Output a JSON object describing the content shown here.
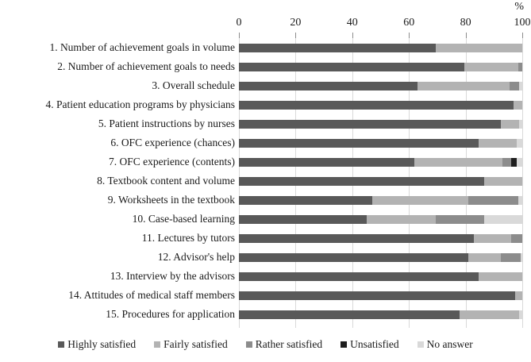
{
  "chart_data": {
    "type": "bar",
    "subtype": "horizontal-stacked-100pct",
    "unit_label": "%",
    "axis": {
      "ticks": [
        0,
        20,
        40,
        60,
        80,
        100
      ],
      "min": 0,
      "max": 100,
      "grid": true,
      "position": "top"
    },
    "categories": [
      "1. Number of achievement goals in volume",
      "2. Number of achievement goals to needs",
      "3. Overall schedule",
      "4. Patient education programs by physicians",
      "5. Patient instructions by nurses",
      "6. OFC experience (chances)",
      "7. OFC experience (contents)",
      "8. Textbook content and volume",
      "9. Worksheets in the textbook",
      "10. Case-based learning",
      "11. Lectures by tutors",
      "12. Advisor's help",
      "13. Interview by the advisors",
      "14. Attitudes of medical staff members",
      "15. Procedures for application"
    ],
    "series": [
      {
        "name": "Highly satisfied",
        "color": "#595959",
        "values": [
          69.5,
          79.5,
          63,
          97,
          92.5,
          84.5,
          62,
          86.5,
          47,
          45,
          83,
          81,
          84.5,
          97.5,
          78
        ]
      },
      {
        "name": "Fairly satisfied",
        "color": "#b3b3b3",
        "values": [
          30.5,
          19,
          32.5,
          3,
          6.5,
          13.5,
          31,
          13.5,
          34,
          24.5,
          13,
          11.5,
          15.5,
          2.5,
          21
        ]
      },
      {
        "name": "Rather satisfied",
        "color": "#8c8c8c",
        "values": [
          0,
          1.5,
          3.5,
          0,
          0,
          0,
          3,
          0,
          17.5,
          17,
          4,
          7,
          0,
          0,
          0
        ]
      },
      {
        "name": "Unsatisfied",
        "color": "#1f1f1f",
        "values": [
          0,
          0,
          0,
          0,
          0,
          0,
          2,
          0,
          0,
          0,
          0,
          0,
          0,
          0,
          0
        ]
      },
      {
        "name": "No answer",
        "color": "#d9d9d9",
        "values": [
          0,
          0,
          1,
          0,
          1,
          2,
          2,
          0,
          1.5,
          13.5,
          0,
          0.5,
          0,
          0,
          1
        ]
      }
    ],
    "legend_position": "bottom",
    "colors": {
      "text": "#1a1a1a",
      "gridline": "#d9d9d9",
      "tick": "#8c8c8c",
      "background": "#ffffff"
    }
  }
}
